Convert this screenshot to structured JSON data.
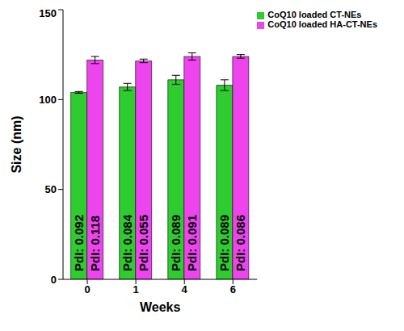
{
  "chart_data": {
    "type": "bar",
    "x_label": "Weeks",
    "y_label": "Size (nm)",
    "categories": [
      "0",
      "1",
      "4",
      "6"
    ],
    "series": [
      {
        "name": "CoQ10 loaded CT-NEs",
        "color": "#2ecc2e",
        "values": [
          104,
          107,
          111,
          108
        ],
        "error": [
          0.5,
          2,
          2.5,
          3
        ],
        "annotations": [
          "PdI: 0.092",
          "PdI: 0.084",
          "PdI: 0.089",
          "PdI: 0.089"
        ]
      },
      {
        "name": "CoQ10 loaded HA-CT-NEs",
        "color": "#ee44ee",
        "values": [
          122,
          121.5,
          124,
          124
        ],
        "error": [
          2,
          1,
          2,
          1
        ],
        "annotations": [
          "PdI: 0.118",
          "PdI: 0.055",
          "PdI: 0.091",
          "PdI: 0.086"
        ]
      }
    ],
    "ylim": [
      0,
      150
    ],
    "yticks": [
      0,
      50,
      100,
      150
    ],
    "grid": false,
    "legend": "top-right"
  }
}
